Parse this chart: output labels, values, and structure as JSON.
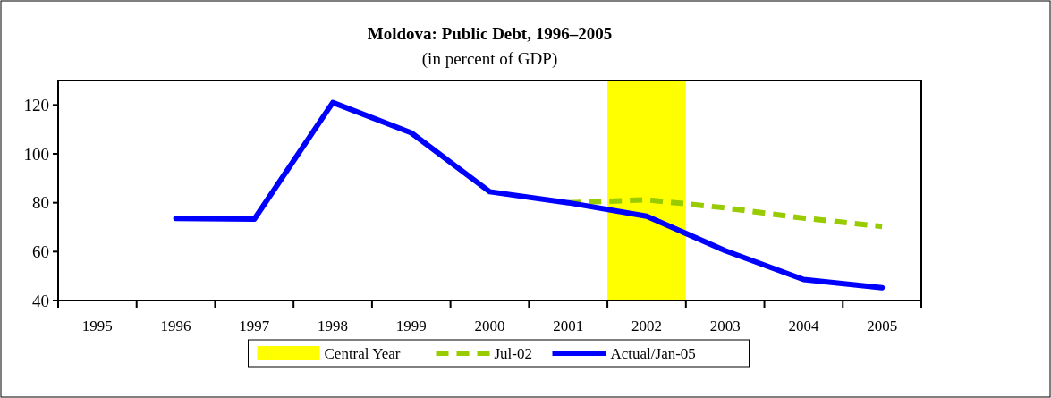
{
  "chart_data": {
    "type": "line",
    "title": "Moldova: Public Debt, 1996–2005",
    "subtitle": "(in percent of GDP)",
    "categories": [
      "1995",
      "1996",
      "1997",
      "1998",
      "1999",
      "2000",
      "2001",
      "2002",
      "2003",
      "2004",
      "2005"
    ],
    "series": [
      {
        "name": "Jul-02",
        "color": "#99cc00",
        "line_style": "dashed",
        "values": [
          null,
          null,
          null,
          null,
          null,
          null,
          80,
          81.2,
          77.9,
          73.7,
          70.3
        ]
      },
      {
        "name": "Actual/Jan-05",
        "color": "#0000ff",
        "line_style": "solid",
        "values": [
          null,
          73.6,
          73.3,
          121,
          108.6,
          84.5,
          80,
          74.5,
          60.4,
          48.6,
          45.2
        ]
      }
    ],
    "bands": [
      {
        "axis": "x",
        "from": "2002",
        "to": "2002",
        "label": "Central Year",
        "color": "#ffff00"
      }
    ],
    "ylim": [
      40,
      130
    ],
    "yticks": [
      40,
      60,
      80,
      100,
      120
    ],
    "grid": false,
    "legend": "bottom"
  }
}
